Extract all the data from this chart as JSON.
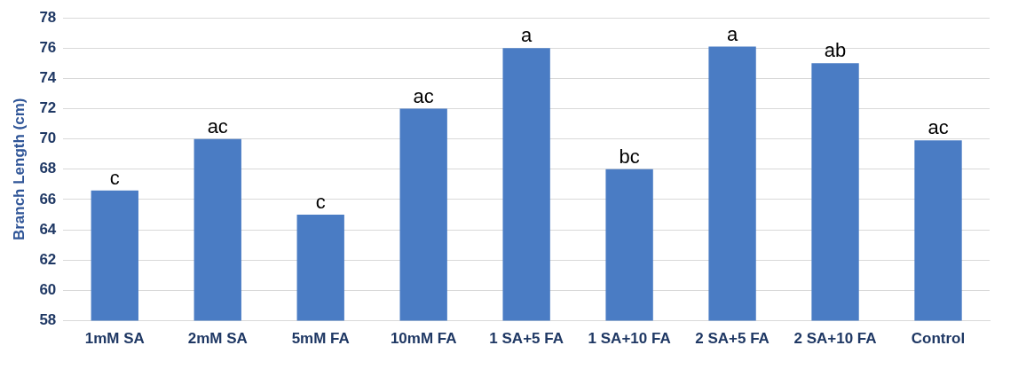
{
  "chart_data": {
    "type": "bar",
    "ylabel": "Branch Length (cm)",
    "categories": [
      "1mM SA",
      "2mM SA",
      "5mM FA",
      "10mM FA",
      "1 SA+5 FA",
      "1 SA+10 FA",
      "2 SA+5 FA",
      "2 SA+10 FA",
      "Control"
    ],
    "values": [
      66.6,
      70,
      65,
      72,
      76,
      68,
      76.1,
      75,
      69.9
    ],
    "color": "#4a7cc4",
    "ylim": [
      58,
      78
    ],
    "yticks": [
      58,
      60,
      62,
      64,
      66,
      68,
      70,
      72,
      74,
      76,
      78
    ],
    "grid": "y",
    "legend": false,
    "annotations": [
      {
        "text": "c",
        "x": "1mM SA",
        "y": 66.6
      },
      {
        "text": "ac",
        "x": "2mM SA",
        "y": 70
      },
      {
        "text": "c",
        "x": "5mM FA",
        "y": 65
      },
      {
        "text": "ac",
        "x": "10mM FA",
        "y": 72
      },
      {
        "text": "a",
        "x": "1 SA+5 FA",
        "y": 76
      },
      {
        "text": "bc",
        "x": "1 SA+10 FA",
        "y": 68
      },
      {
        "text": "a",
        "x": "2 SA+5 FA",
        "y": 76.1
      },
      {
        "text": "ab",
        "x": "2 SA+10 FA",
        "y": 75
      },
      {
        "text": "ac",
        "x": "Control",
        "y": 69.9
      }
    ]
  }
}
